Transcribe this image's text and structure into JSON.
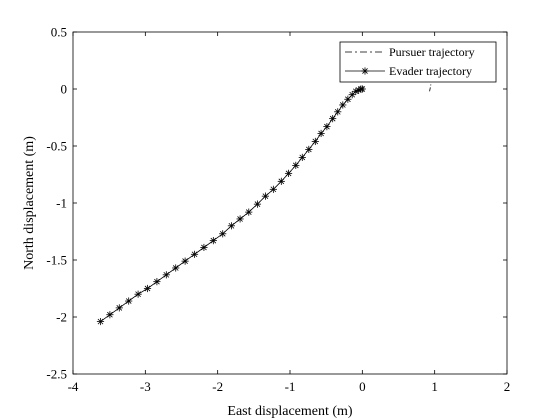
{
  "chart_data": {
    "type": "line",
    "title": "",
    "xlabel": "East displacement (m)",
    "ylabel": "North displacement (m)",
    "xlim": [
      -4,
      2
    ],
    "ylim": [
      -2.5,
      0.5
    ],
    "xticks": [
      -4,
      -3,
      -2,
      -1,
      0,
      1,
      2
    ],
    "yticks": [
      0.5,
      0,
      -0.5,
      -1,
      -1.5,
      -2,
      -2.5
    ],
    "grid": false,
    "legend_position": "top-right",
    "series": [
      {
        "name": "Pursuer trajectory",
        "style": "dash-dot",
        "color": "#000000",
        "points": [
          [
            0.93,
            -0.02
          ],
          [
            0.95,
            0.05
          ]
        ]
      },
      {
        "name": "Evader trajectory",
        "style": "solid-asterisk",
        "color": "#000000",
        "points": [
          [
            -3.62,
            -2.04
          ],
          [
            -3.49,
            -1.98
          ],
          [
            -3.36,
            -1.92
          ],
          [
            -3.23,
            -1.86
          ],
          [
            -3.1,
            -1.8
          ],
          [
            -2.97,
            -1.75
          ],
          [
            -2.84,
            -1.69
          ],
          [
            -2.71,
            -1.63
          ],
          [
            -2.58,
            -1.57
          ],
          [
            -2.45,
            -1.51
          ],
          [
            -2.32,
            -1.45
          ],
          [
            -2.19,
            -1.39
          ],
          [
            -2.06,
            -1.33
          ],
          [
            -1.93,
            -1.27
          ],
          [
            -1.81,
            -1.2
          ],
          [
            -1.69,
            -1.14
          ],
          [
            -1.57,
            -1.08
          ],
          [
            -1.45,
            -1.01
          ],
          [
            -1.34,
            -0.94
          ],
          [
            -1.23,
            -0.88
          ],
          [
            -1.12,
            -0.81
          ],
          [
            -1.02,
            -0.74
          ],
          [
            -0.92,
            -0.67
          ],
          [
            -0.83,
            -0.6
          ],
          [
            -0.74,
            -0.53
          ],
          [
            -0.65,
            -0.46
          ],
          [
            -0.57,
            -0.39
          ],
          [
            -0.49,
            -0.33
          ],
          [
            -0.41,
            -0.26
          ],
          [
            -0.34,
            -0.2
          ],
          [
            -0.27,
            -0.14
          ],
          [
            -0.2,
            -0.09
          ],
          [
            -0.14,
            -0.05
          ],
          [
            -0.09,
            -0.02
          ],
          [
            -0.05,
            -0.01
          ],
          [
            -0.02,
            0.0
          ],
          [
            0.0,
            0.0
          ]
        ]
      }
    ]
  }
}
